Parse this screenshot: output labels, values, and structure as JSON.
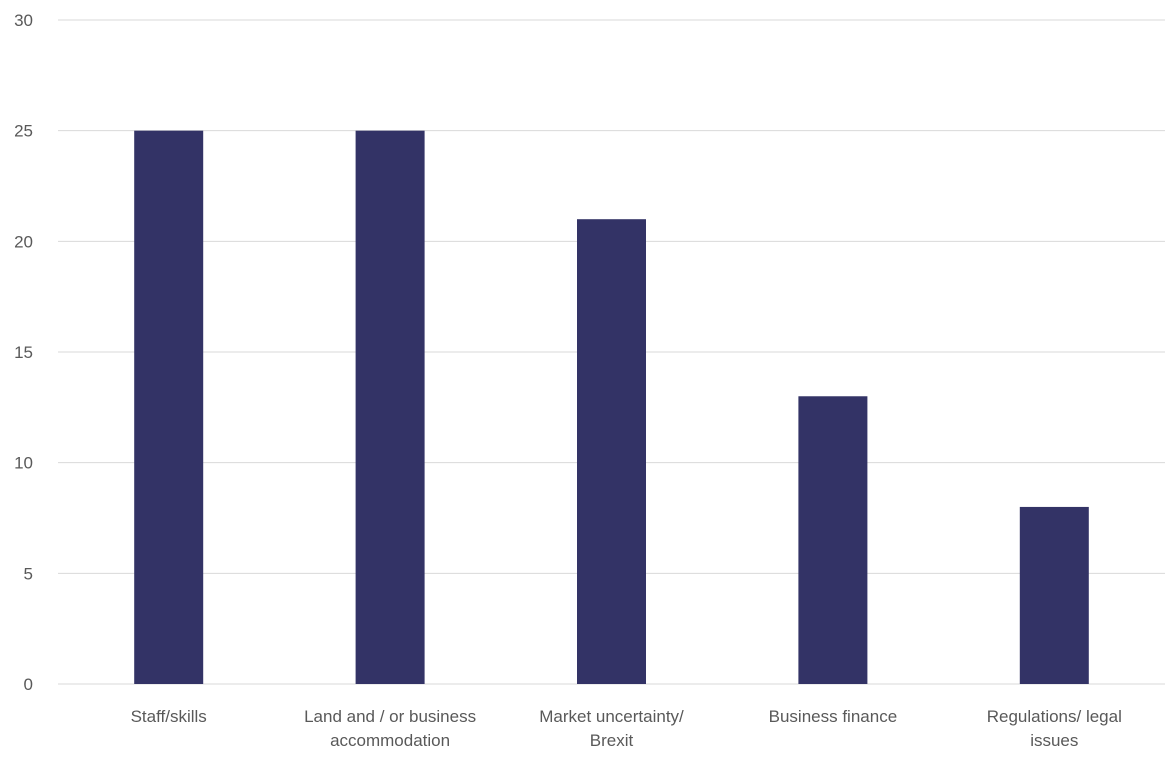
{
  "chart_data": {
    "type": "bar",
    "categories": [
      [
        "Staff/skills"
      ],
      [
        "Land and / or business",
        "accommodation"
      ],
      [
        "Market uncertainty/",
        "Brexit"
      ],
      [
        "Business finance"
      ],
      [
        "Regulations/ legal",
        "issues"
      ]
    ],
    "values": [
      25,
      25,
      21,
      13,
      8
    ],
    "ylim": [
      0,
      30
    ],
    "yticks": [
      0,
      5,
      10,
      15,
      20,
      25,
      30
    ],
    "grid": true,
    "bar_color": "#333366",
    "grid_color": "#d9d9d9",
    "text_color": "#595959"
  }
}
